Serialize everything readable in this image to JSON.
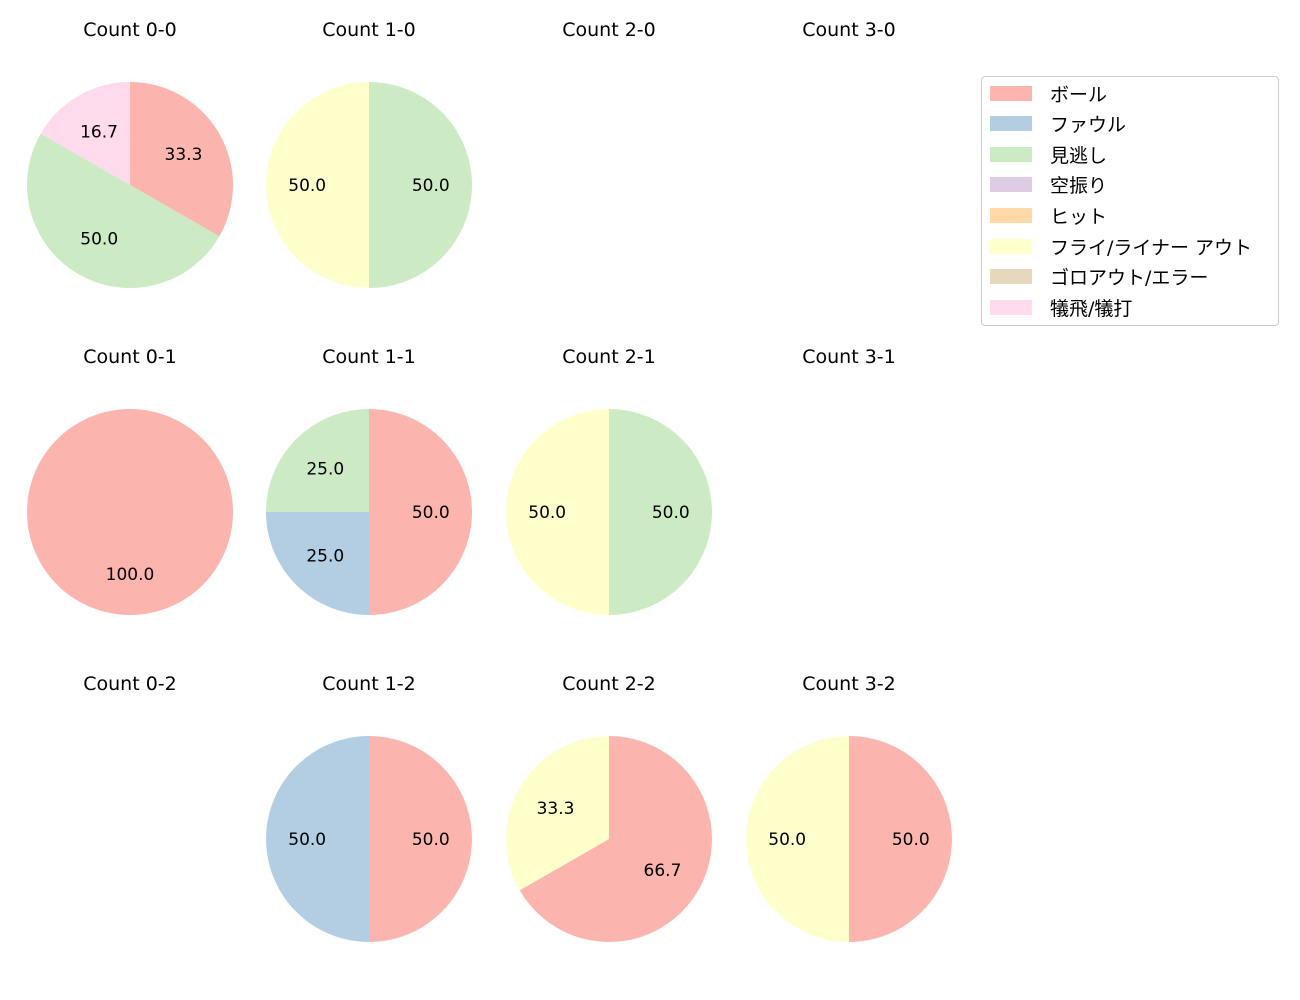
{
  "chart_data": {
    "type": "pie",
    "title": "",
    "category_colors": {
      "ボール": "#fbb4ae",
      "ファウル": "#b3cde3",
      "見逃し": "#ccebc5",
      "空振り": "#decbe4",
      "ヒット": "#fed9a6",
      "フライ/ライナー アウト": "#ffffcc",
      "ゴロアウト/エラー": "#e5d8bd",
      "犠飛/犠打": "#fddaec"
    },
    "legend": {
      "position": "upper right",
      "entries": [
        "ボール",
        "ファウル",
        "見逃し",
        "空振り",
        "ヒット",
        "フライ/ライナー アウト",
        "ゴロアウト/エラー",
        "犠飛/犠打"
      ]
    },
    "subplots": [
      {
        "title": "Count 0-0",
        "row": 0,
        "col": 0,
        "slices": [
          {
            "label": "ボール",
            "value": 33.3
          },
          {
            "label": "見逃し",
            "value": 50.0
          },
          {
            "label": "犠飛/犠打",
            "value": 16.7
          }
        ]
      },
      {
        "title": "Count 1-0",
        "row": 0,
        "col": 1,
        "slices": [
          {
            "label": "見逃し",
            "value": 50.0
          },
          {
            "label": "フライ/ライナー アウト",
            "value": 50.0
          }
        ]
      },
      {
        "title": "Count 2-0",
        "row": 0,
        "col": 2,
        "slices": []
      },
      {
        "title": "Count 3-0",
        "row": 0,
        "col": 3,
        "slices": []
      },
      {
        "title": "Count 0-1",
        "row": 1,
        "col": 0,
        "slices": [
          {
            "label": "ボール",
            "value": 100.0
          }
        ]
      },
      {
        "title": "Count 1-1",
        "row": 1,
        "col": 1,
        "slices": [
          {
            "label": "ボール",
            "value": 50.0
          },
          {
            "label": "ファウル",
            "value": 25.0
          },
          {
            "label": "見逃し",
            "value": 25.0
          }
        ]
      },
      {
        "title": "Count 2-1",
        "row": 1,
        "col": 2,
        "slices": [
          {
            "label": "見逃し",
            "value": 50.0
          },
          {
            "label": "フライ/ライナー アウト",
            "value": 50.0
          }
        ]
      },
      {
        "title": "Count 3-1",
        "row": 1,
        "col": 3,
        "slices": []
      },
      {
        "title": "Count 0-2",
        "row": 2,
        "col": 0,
        "slices": []
      },
      {
        "title": "Count 1-2",
        "row": 2,
        "col": 1,
        "slices": [
          {
            "label": "ボール",
            "value": 50.0
          },
          {
            "label": "ファウル",
            "value": 50.0
          }
        ]
      },
      {
        "title": "Count 2-2",
        "row": 2,
        "col": 2,
        "slices": [
          {
            "label": "ボール",
            "value": 66.7
          },
          {
            "label": "フライ/ライナー アウト",
            "value": 33.3
          }
        ]
      },
      {
        "title": "Count 3-2",
        "row": 2,
        "col": 3,
        "slices": [
          {
            "label": "ボール",
            "value": 50.0
          },
          {
            "label": "フライ/ライナー アウト",
            "value": 50.0
          }
        ]
      }
    ]
  }
}
